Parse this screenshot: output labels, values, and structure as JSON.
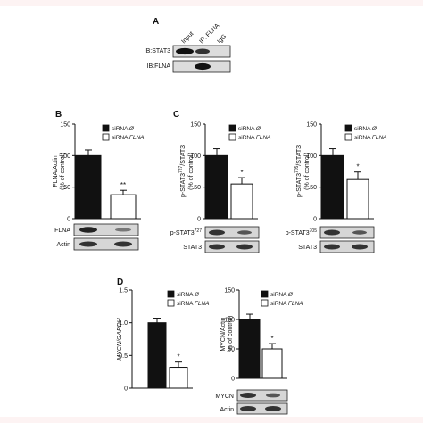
{
  "panel_a": {
    "letter": "A",
    "lane_labels": [
      "Input",
      "IP: FLNA",
      "IgG"
    ],
    "blot_labels": [
      "IB:STAT3",
      "IB:FLNA"
    ]
  },
  "panels": {
    "b": {
      "letter": "B"
    },
    "c": {
      "letter": "C"
    },
    "d": {
      "letter": "D"
    }
  },
  "chart_data": [
    {
      "type": "bar",
      "panel": "B",
      "categories": [
        "siRNA Ø",
        "siRNA FLNA"
      ],
      "values": [
        100,
        38
      ],
      "errors": [
        9,
        7
      ],
      "ylabel": "FLNA/Actin (% of control)",
      "ylim": [
        0,
        150
      ],
      "yticks": [
        0,
        50,
        100,
        150
      ],
      "significance": [
        "",
        "**"
      ],
      "legend": [
        "siRNA Ø",
        "siRNA FLNA"
      ],
      "blots": [
        "FLNA",
        "Actin"
      ]
    },
    {
      "type": "bar",
      "panel": "C-left",
      "categories": [
        "siRNA Ø",
        "siRNA FLNA"
      ],
      "values": [
        100,
        55
      ],
      "errors": [
        11,
        10
      ],
      "ylabel_line1": "p-STAT3727/STAT3",
      "ylabel_line2": "(% of control)",
      "ylim": [
        0,
        150
      ],
      "yticks": [
        0,
        50,
        100,
        150
      ],
      "significance": [
        "",
        "*"
      ],
      "legend": [
        "siRNA Ø",
        "siRNA FLNA"
      ],
      "blots": [
        "p-STAT3727",
        "STAT3"
      ]
    },
    {
      "type": "bar",
      "panel": "C-right",
      "categories": [
        "siRNA Ø",
        "siRNA FLNA"
      ],
      "values": [
        100,
        62
      ],
      "errors": [
        11,
        12
      ],
      "ylabel_line1": "p-STAT3705/STAT3",
      "ylabel_line2": "(% of control)",
      "ylim": [
        0,
        150
      ],
      "yticks": [
        0,
        50,
        100,
        150
      ],
      "significance": [
        "",
        "*"
      ],
      "legend": [
        "siRNA Ø",
        "siRNA FLNA"
      ],
      "blots": [
        "p-STAT3705",
        "STAT3"
      ]
    },
    {
      "type": "bar",
      "panel": "D-left",
      "categories": [
        "siRNA Ø",
        "siRNA FLNA"
      ],
      "values": [
        1.0,
        0.32
      ],
      "errors": [
        0.07,
        0.08
      ],
      "ylabel": "MYCN/GAPDH",
      "ylim": [
        0,
        1.5
      ],
      "yticks": [
        0,
        0.5,
        1.0,
        1.5
      ],
      "ytick_labels": [
        "0",
        "0.5",
        "1.0",
        "1.5"
      ],
      "significance": [
        "",
        "*"
      ],
      "legend": [
        "siRNA Ø",
        "siRNA FLNA"
      ]
    },
    {
      "type": "bar",
      "panel": "D-right",
      "categories": [
        "siRNA Ø",
        "siRNA FLNA"
      ],
      "values": [
        100,
        50
      ],
      "errors": [
        9,
        9
      ],
      "ylabel": "MYCN/Actin (% of control)",
      "ylim": [
        0,
        150
      ],
      "yticks": [
        0,
        50,
        100,
        150
      ],
      "significance": [
        "",
        "*"
      ],
      "legend": [
        "siRNA Ø",
        "siRNA FLNA"
      ],
      "blots": [
        "MYCN",
        "Actin"
      ]
    }
  ]
}
